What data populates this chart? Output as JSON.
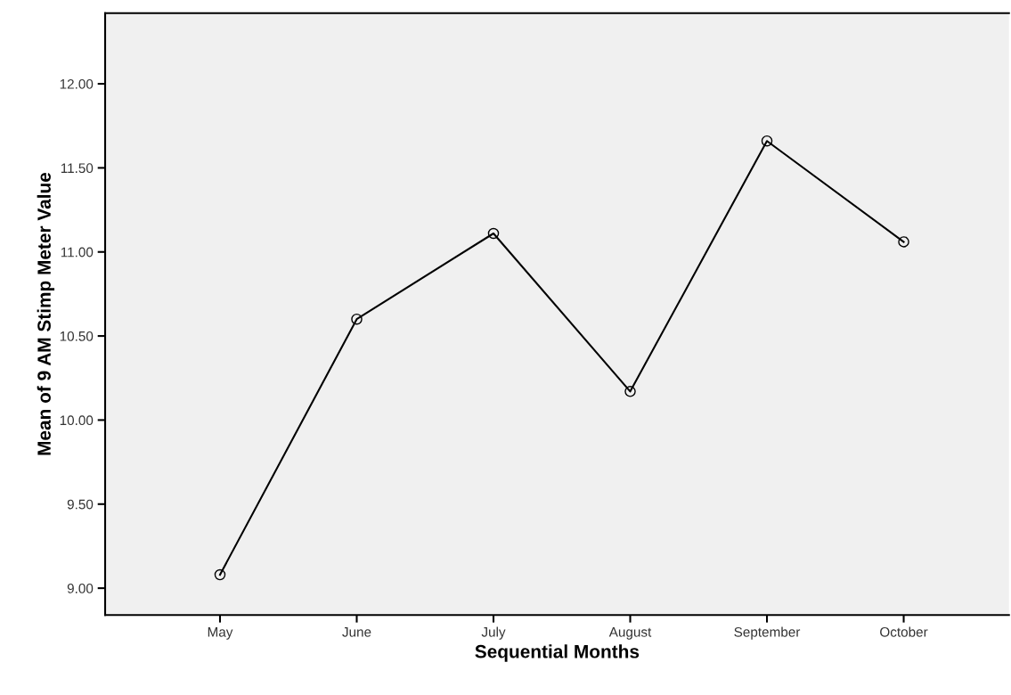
{
  "chart_data": {
    "type": "line",
    "xlabel": "Sequential Months",
    "ylabel": "Mean of 9 AM Stimp Meter Value",
    "categories": [
      "May",
      "June",
      "July",
      "August",
      "September",
      "October"
    ],
    "series": [
      {
        "color": "#000000",
        "values": [
          9.08,
          10.6,
          11.11,
          10.17,
          11.66,
          11.06
        ]
      }
    ],
    "ylim": [
      8.84,
      12.42
    ],
    "yticks": [
      {
        "value": 9,
        "label": "9.00"
      },
      {
        "value": 9.5,
        "label": "9.50"
      },
      {
        "value": 10,
        "label": "10.00"
      },
      {
        "value": 10.5,
        "label": "10.50"
      },
      {
        "value": 11,
        "label": "11.00"
      },
      {
        "value": 11.5,
        "label": "11.50"
      },
      {
        "value": 12,
        "label": "12.00"
      }
    ],
    "marker": "circle",
    "line_style": "solid",
    "grid": false
  }
}
